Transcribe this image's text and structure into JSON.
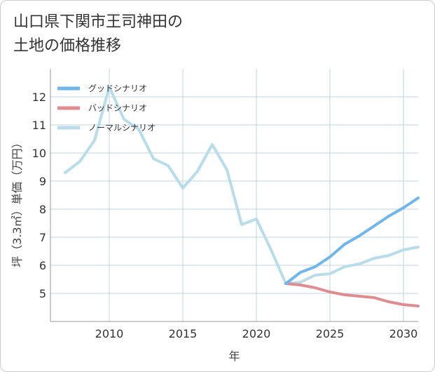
{
  "title_lines": [
    "山口県下関市王司神田の",
    "土地の価格推移"
  ],
  "chart_data": {
    "type": "line",
    "xlabel": "年",
    "ylabel": "坪（3.3㎡）単価（万円）",
    "xlim": [
      2006,
      2031
    ],
    "ylim": [
      4,
      13
    ],
    "x_ticks": [
      2010,
      2015,
      2020,
      2025,
      2030
    ],
    "y_ticks": [
      5,
      6,
      7,
      8,
      9,
      10,
      11,
      12
    ],
    "grid": true,
    "legend_position": "top-left",
    "series": [
      {
        "name": "ノーマルシナリオ",
        "color": "#b9dcea",
        "x": [
          2007,
          2008,
          2009,
          2010,
          2011,
          2012,
          2013,
          2014,
          2015,
          2016,
          2017,
          2018,
          2019,
          2020,
          2021,
          2022,
          2023,
          2024,
          2025,
          2026,
          2027,
          2028,
          2029,
          2030,
          2031
        ],
        "y": [
          9.3,
          9.7,
          10.45,
          12.35,
          11.2,
          10.85,
          9.8,
          9.55,
          8.75,
          9.35,
          10.3,
          9.4,
          7.45,
          7.65,
          6.55,
          5.35,
          5.4,
          5.65,
          5.7,
          5.95,
          6.05,
          6.25,
          6.35,
          6.55,
          6.65
        ]
      },
      {
        "name": "バッドシナリオ",
        "color": "#de8c8f",
        "x": [
          2022,
          2023,
          2024,
          2025,
          2026,
          2027,
          2028,
          2029,
          2030,
          2031
        ],
        "y": [
          5.35,
          5.3,
          5.2,
          5.05,
          4.95,
          4.9,
          4.85,
          4.7,
          4.6,
          4.55
        ]
      },
      {
        "name": "グッドシナリオ",
        "color": "#6fb6ea",
        "x": [
          2022,
          2023,
          2024,
          2025,
          2026,
          2027,
          2028,
          2029,
          2030,
          2031
        ],
        "y": [
          5.35,
          5.75,
          5.95,
          6.3,
          6.75,
          7.05,
          7.4,
          7.75,
          8.05,
          8.4
        ]
      }
    ],
    "legend_order": [
      "グッドシナリオ",
      "バッドシナリオ",
      "ノーマルシナリオ"
    ]
  },
  "colors": {
    "grid": "#bcd5e0",
    "axis": "#999999",
    "background": "#ffffff"
  }
}
